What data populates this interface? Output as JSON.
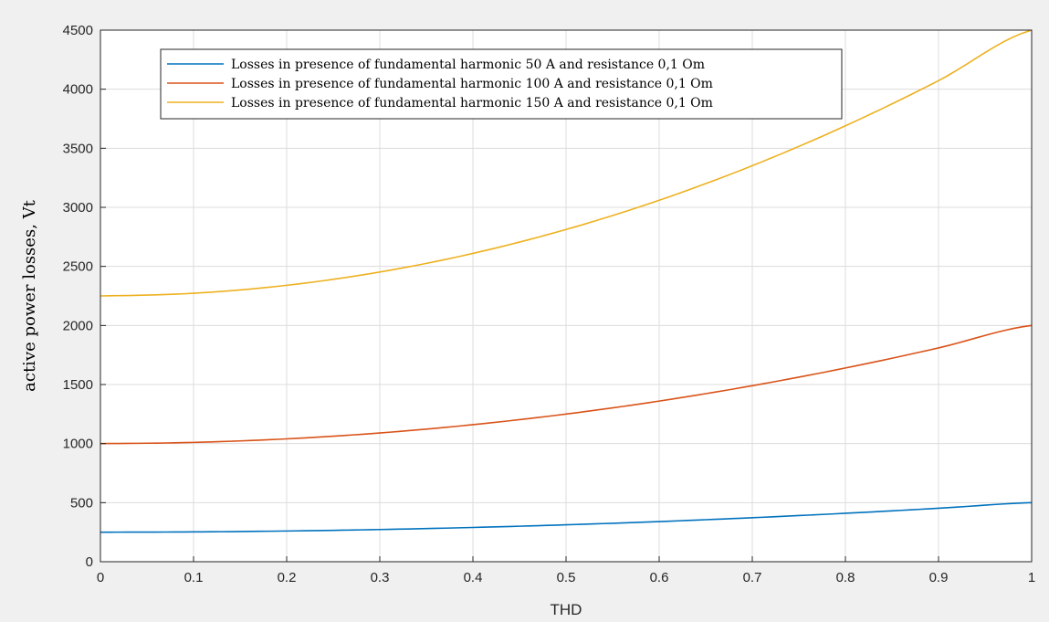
{
  "chart_data": {
    "type": "line",
    "xlabel": "THD",
    "ylabel": "active power losses, Vt",
    "xlim": [
      0,
      1
    ],
    "ylim": [
      0,
      4500
    ],
    "x_ticks": [
      "0",
      "0.1",
      "0.2",
      "0.3",
      "0.4",
      "0.5",
      "0.6",
      "0.7",
      "0.8",
      "0.9",
      "1"
    ],
    "y_ticks": [
      "0",
      "500",
      "1000",
      "1500",
      "2000",
      "2500",
      "3000",
      "3500",
      "4000",
      "4500"
    ],
    "grid": true,
    "legend_position": "top-left",
    "x": [
      0,
      0.1,
      0.2,
      0.3,
      0.4,
      0.5,
      0.6,
      0.7,
      0.8,
      0.9,
      1
    ],
    "series": [
      {
        "name": "Losses in presence of fundamental harmonic 50 A and resistance 0,1 Om",
        "color": "#0072bd",
        "values": [
          250,
          252.5,
          260,
          272.5,
          290,
          312.5,
          340,
          372.5,
          410,
          452.5,
          500
        ]
      },
      {
        "name": "Losses in presence of fundamental harmonic 100 A and resistance 0,1 Om",
        "color": "#d95319",
        "values": [
          1000,
          1010,
          1040,
          1090,
          1160,
          1250,
          1360,
          1490,
          1640,
          1810,
          2000
        ]
      },
      {
        "name": "Losses in presence of fundamental harmonic 150 A and resistance 0,1 Om",
        "color": "#edb120",
        "values": [
          2250,
          2272.5,
          2340,
          2452.5,
          2610,
          2812.5,
          3060,
          3352.5,
          3690,
          4072.5,
          4500
        ]
      }
    ]
  }
}
